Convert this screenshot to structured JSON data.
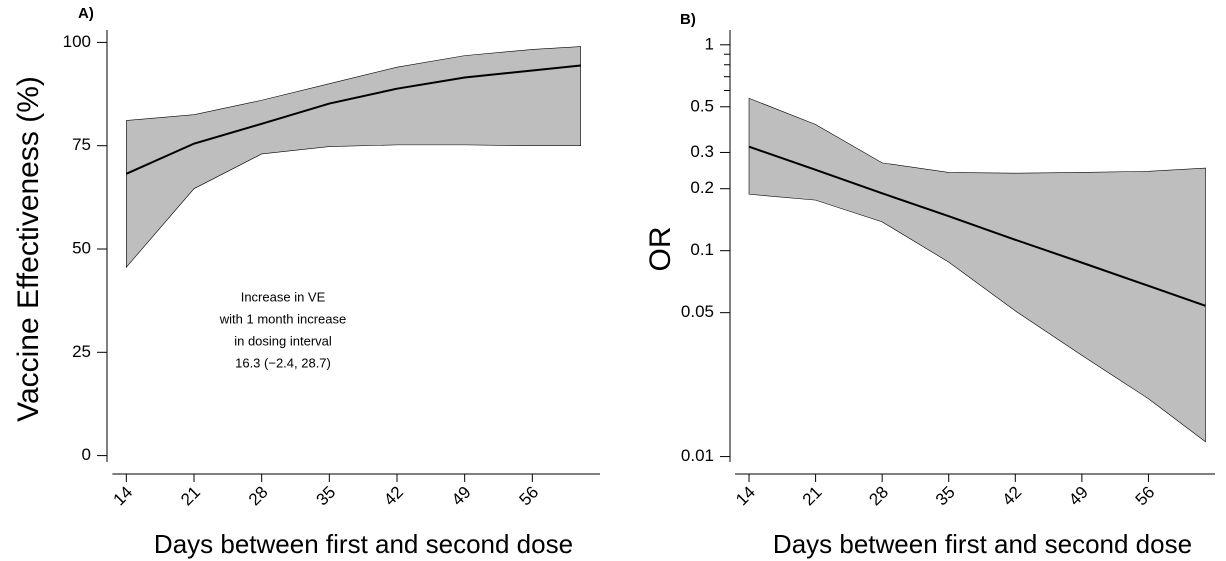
{
  "chart_data": [
    {
      "type": "line",
      "title": "A)",
      "x": [
        14,
        21,
        28,
        35,
        42,
        49,
        56,
        61
      ],
      "xlim": [
        12,
        63
      ],
      "xticks": [
        14,
        21,
        28,
        35,
        42,
        49,
        56
      ],
      "ylim": [
        -3,
        103
      ],
      "yticks": [
        0,
        25,
        50,
        75,
        100
      ],
      "ylog": false,
      "xlabel": "Days between first and second dose",
      "ylabel": "Vaccine Effectiveness (%)",
      "series": [
        {
          "color": "#000000",
          "band_color": "#bebebe",
          "values": [
            68.2,
            75.5,
            80.3,
            85.2,
            88.8,
            91.5,
            93.2,
            94.4
          ],
          "lower": [
            45.6,
            64.6,
            73,
            74.8,
            75.2,
            75.2,
            75,
            75
          ],
          "upper": [
            81.1,
            82.5,
            86,
            90,
            94,
            96.8,
            98.3,
            99
          ]
        }
      ],
      "annotation": [
        "Increase in VE",
        "with 1 month increase",
        "in dosing interval",
        "16.3 (−2.4, 28.7)"
      ]
    },
    {
      "type": "line",
      "title": "B)",
      "x": [
        14,
        21,
        28,
        35,
        42,
        49,
        56,
        62
      ],
      "xlim": [
        12,
        63
      ],
      "xticks": [
        14,
        21,
        28,
        35,
        42,
        49,
        56
      ],
      "ylim": [
        0.0088,
        1.18
      ],
      "yticks": [
        1,
        0.5,
        0.3,
        0.2,
        0.1,
        0.05,
        0.01
      ],
      "yminorticks": [
        0.6,
        0.7,
        0.8,
        0.9
      ],
      "ylog": true,
      "xlabel": "Days between first and second dose",
      "ylabel": "OR",
      "series": [
        {
          "color": "#000000",
          "band_color": "#bebebe",
          "values": [
            0.32,
            0.247,
            0.19,
            0.147,
            0.113,
            0.0875,
            0.0675,
            0.054
          ],
          "lower": [
            0.188,
            0.176,
            0.138,
            0.088,
            0.051,
            0.031,
            0.0191,
            0.0118
          ],
          "upper": [
            0.55,
            0.41,
            0.267,
            0.24,
            0.238,
            0.24,
            0.243,
            0.252
          ]
        }
      ]
    }
  ]
}
